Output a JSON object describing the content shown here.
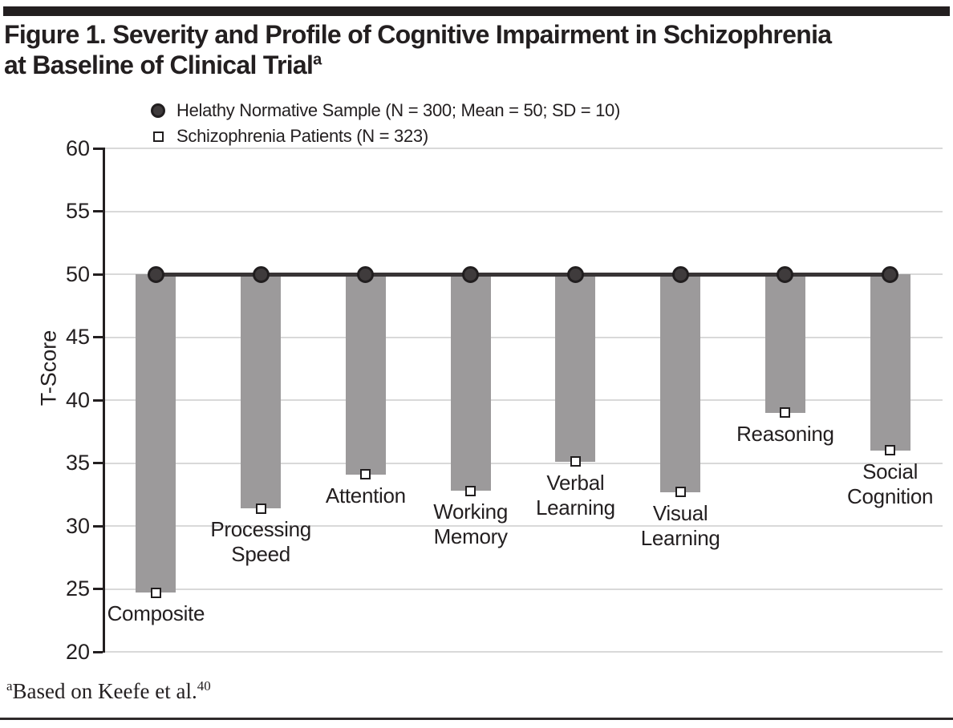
{
  "page": {
    "title_line1": "Figure 1. Severity and Profile of Cognitive Impairment in Schizophrenia",
    "title_line2": "at Baseline of Clinical Trial",
    "title_superscript": "a",
    "footnote_superscript": "a",
    "footnote_text": "Based on Keefe et al.",
    "footnote_reference": "40"
  },
  "legend": {
    "items": [
      {
        "marker": "filled-circle",
        "label": "Helathy Normative Sample (N = 300; Mean = 50; SD = 10)"
      },
      {
        "marker": "open-square",
        "label": "Schizophrenia Patients (N = 323)"
      }
    ]
  },
  "chart_data": {
    "type": "bar",
    "title": "Figure 1. Severity and Profile of Cognitive Impairment in Schizophrenia at Baseline of Clinical Trial",
    "xlabel": "",
    "ylabel": "T-Score",
    "ylim": [
      20,
      60
    ],
    "yticks": [
      20,
      25,
      30,
      35,
      40,
      45,
      50,
      55,
      60
    ],
    "grid": true,
    "legend_position": "top",
    "baseline_value": 50,
    "categories": [
      "Composite",
      "Processing\nSpeed",
      "Attention",
      "Working\nMemory",
      "Verbal\nLearning",
      "Visual\nLearning",
      "Reasoning",
      "Social\nCognition"
    ],
    "series": [
      {
        "name": "Helathy Normative Sample (N = 300; Mean = 50; SD = 10)",
        "marker": "filled-circle",
        "values": [
          50,
          50,
          50,
          50,
          50,
          50,
          50,
          50
        ]
      },
      {
        "name": "Schizophrenia Patients (N = 323)",
        "marker": "open-square",
        "values": [
          24.7,
          31.4,
          34.1,
          32.8,
          35.1,
          32.7,
          39.0,
          36.0
        ]
      }
    ],
    "colors": {
      "bar": "#9c9a9b",
      "baseline": "#383435",
      "gridline": "#d9d9d9",
      "axis": "#231f20",
      "marker_circle_fill": "#3f3b3c",
      "marker_square_fill": "#ffffff"
    }
  }
}
